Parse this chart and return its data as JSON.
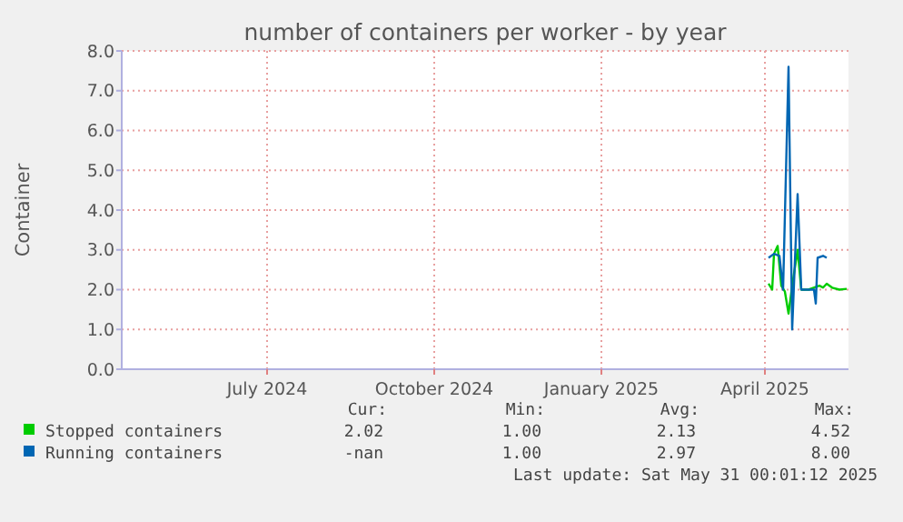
{
  "chart_data": {
    "type": "line",
    "title": "number of containers per worker - by year",
    "ylabel": "Container",
    "xlim": [
      "2024-04-12",
      "2025-05-17"
    ],
    "xticks": [
      {
        "value": "2024-07-01",
        "label": "July 2024"
      },
      {
        "value": "2024-10-01",
        "label": "October 2024"
      },
      {
        "value": "2025-01-01",
        "label": "January 2025"
      },
      {
        "value": "2025-04-01",
        "label": "April 2025"
      }
    ],
    "ylim": [
      0,
      8
    ],
    "yticks": [
      {
        "value": 0,
        "label": "0.0"
      },
      {
        "value": 1,
        "label": "1.0"
      },
      {
        "value": 2,
        "label": "2.0"
      },
      {
        "value": 3,
        "label": "3.0"
      },
      {
        "value": 4,
        "label": "4.0"
      },
      {
        "value": 5,
        "label": "5.0"
      },
      {
        "value": 6,
        "label": "6.0"
      },
      {
        "value": 7,
        "label": "7.0"
      },
      {
        "value": 8,
        "label": "8.0"
      }
    ],
    "grid": true,
    "legend": "bottom",
    "marker": "none",
    "line_style": "solid",
    "series": [
      {
        "name": "Stopped containers",
        "color": "#00cc00",
        "x": [
          "2025-04-03",
          "2025-04-05",
          "2025-04-06",
          "2025-04-08",
          "2025-04-10",
          "2025-04-12",
          "2025-04-14",
          "2025-04-16",
          "2025-04-19",
          "2025-04-21",
          "2025-04-25",
          "2025-05-01",
          "2025-05-03",
          "2025-05-05",
          "2025-05-08",
          "2025-05-12",
          "2025-05-16"
        ],
        "values": [
          2.15,
          2.0,
          2.9,
          3.1,
          2.1,
          1.95,
          1.4,
          2.1,
          3.0,
          2.0,
          2.0,
          2.1,
          2.05,
          2.15,
          2.05,
          2.0,
          2.02
        ]
      },
      {
        "name": "Running containers",
        "color": "#0066b3",
        "x": [
          "2025-04-03",
          "2025-04-06",
          "2025-04-09",
          "2025-04-11",
          "2025-04-14",
          "2025-04-16",
          "2025-04-19",
          "2025-04-21",
          "2025-04-28",
          "2025-04-29",
          "2025-04-30",
          "2025-05-03",
          "2025-05-05"
        ],
        "values": [
          2.8,
          2.9,
          2.85,
          2.0,
          7.6,
          1.0,
          4.4,
          2.0,
          2.0,
          1.65,
          2.8,
          2.85,
          2.8
        ]
      }
    ],
    "annotations": [
      "Cur:",
      "Min:",
      "Avg:",
      "Max:",
      "2.02",
      "1.00",
      "2.13",
      "4.52",
      "-nan",
      "1.00",
      "2.97",
      "8.00",
      "Last update: Sat May 31 00:01:12 2025"
    ]
  }
}
